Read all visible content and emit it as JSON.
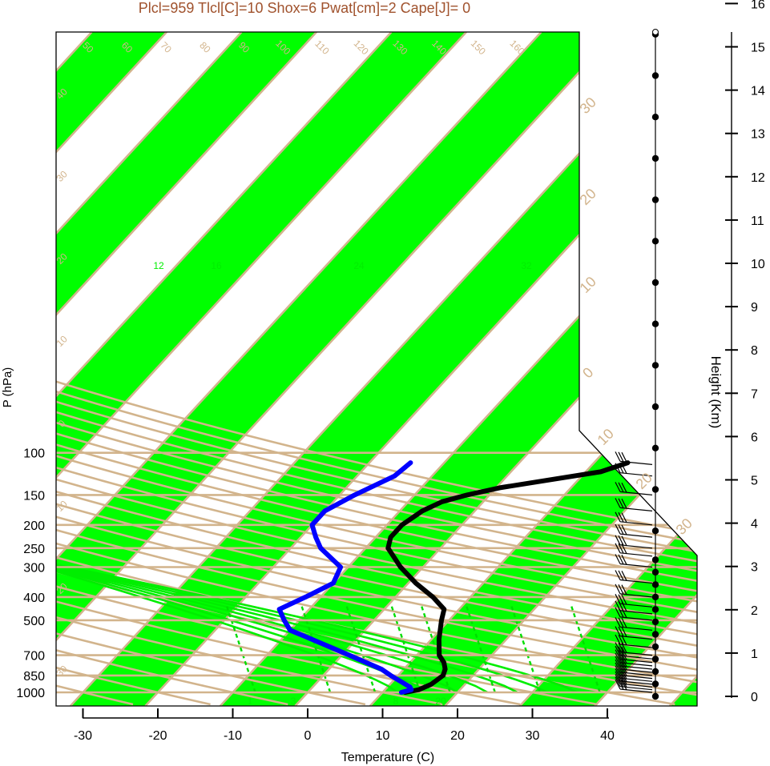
{
  "chart_data": {
    "type": "line",
    "title": "Plcl=959 Tlcl[C]=10 Shox=6 Pwat[cm]=2 Cape[J]= 0",
    "xlabel": "Temperature (C)",
    "ylabel": "P (hPa)",
    "y2label": "Height (Km)",
    "colors": {
      "title": "#a0522d",
      "band": "#00ff00",
      "isotherm": "#d2b48c",
      "adiabat": "#d2b48c",
      "moist_adiabat": "#00ee00",
      "mixing_ratio": "#00dd00",
      "temperature": "#000000",
      "dewpoint": "#0000ff"
    },
    "x_ticks": [
      "-30",
      "-20",
      "-10",
      "0",
      "10",
      "20",
      "30",
      "40"
    ],
    "x_tick_values": [
      -30,
      -20,
      -10,
      0,
      10,
      20,
      30,
      40
    ],
    "p_ticks": [
      "100",
      "150",
      "200",
      "250",
      "300",
      "400",
      "500",
      "700",
      "850",
      "1000"
    ],
    "p_tick_values": [
      100,
      150,
      200,
      250,
      300,
      400,
      500,
      700,
      850,
      1000
    ],
    "height_ticks": [
      "0",
      "1",
      "2",
      "3",
      "4",
      "5",
      "6",
      "7",
      "8",
      "9",
      "10",
      "11",
      "12",
      "13",
      "14",
      "15",
      "16"
    ],
    "isotherm_labels": [
      "30",
      "20",
      "10",
      "0",
      "10",
      "20",
      "30"
    ],
    "isotherm_label_values": [
      30,
      20,
      10,
      0,
      10,
      20,
      30
    ],
    "dry_adiabat_labels": [
      "50",
      "60",
      "70",
      "80",
      "90",
      "100",
      "110",
      "120",
      "130",
      "140",
      "150",
      "160"
    ],
    "left_temp_labels": [
      "40",
      "30",
      "20",
      "10",
      "0",
      "10",
      "20",
      "30"
    ],
    "moist_adiabat_labels": [
      "12",
      "16",
      "24",
      "32"
    ],
    "mixing_ratio_labels": [
      "1",
      "3",
      "8",
      "20"
    ],
    "series": [
      {
        "key": "temperature",
        "points": [
          [
            1000,
            13
          ],
          [
            975,
            14.5
          ],
          [
            925,
            15.5
          ],
          [
            850,
            16
          ],
          [
            800,
            15.5
          ],
          [
            750,
            14.5
          ],
          [
            700,
            13
          ],
          [
            600,
            11
          ],
          [
            500,
            9
          ],
          [
            450,
            8
          ],
          [
            400,
            5
          ],
          [
            350,
            1
          ],
          [
            300,
            -3
          ],
          [
            250,
            -7
          ],
          [
            225,
            -8
          ],
          [
            200,
            -8
          ],
          [
            175,
            -7
          ],
          [
            160,
            -5.5
          ],
          [
            150,
            -3
          ],
          [
            140,
            0.5
          ],
          [
            130,
            6
          ],
          [
            120,
            12
          ],
          [
            110,
            14.5
          ]
        ]
      },
      {
        "key": "dewpoint",
        "points": [
          [
            1000,
            12.5
          ],
          [
            975,
            13.5
          ],
          [
            950,
            13
          ],
          [
            850,
            9
          ],
          [
            800,
            7
          ],
          [
            700,
            1
          ],
          [
            600,
            -6
          ],
          [
            550,
            -10
          ],
          [
            500,
            -12
          ],
          [
            450,
            -14
          ],
          [
            400,
            -12
          ],
          [
            350,
            -10
          ],
          [
            300,
            -11
          ],
          [
            250,
            -16
          ],
          [
            225,
            -18
          ],
          [
            200,
            -20
          ],
          [
            175,
            -20
          ],
          [
            150,
            -18
          ],
          [
            125,
            -15
          ],
          [
            110,
            -14.5
          ]
        ]
      }
    ],
    "wind_levels": [
      1000,
      975,
      950,
      925,
      900,
      875,
      850,
      825,
      800,
      775,
      750,
      725,
      700,
      650,
      600,
      550,
      500,
      470,
      440,
      400,
      350,
      300,
      270,
      250,
      225,
      200,
      175,
      150,
      125,
      112
    ],
    "height_markers_km": [
      0,
      0.3,
      0.6,
      0.9,
      1.2,
      1.5,
      1.8,
      2.1,
      2.4,
      2.7,
      3,
      3.3,
      4,
      5,
      6,
      7,
      8,
      9,
      10,
      11,
      12,
      13,
      14,
      15,
      16
    ]
  }
}
